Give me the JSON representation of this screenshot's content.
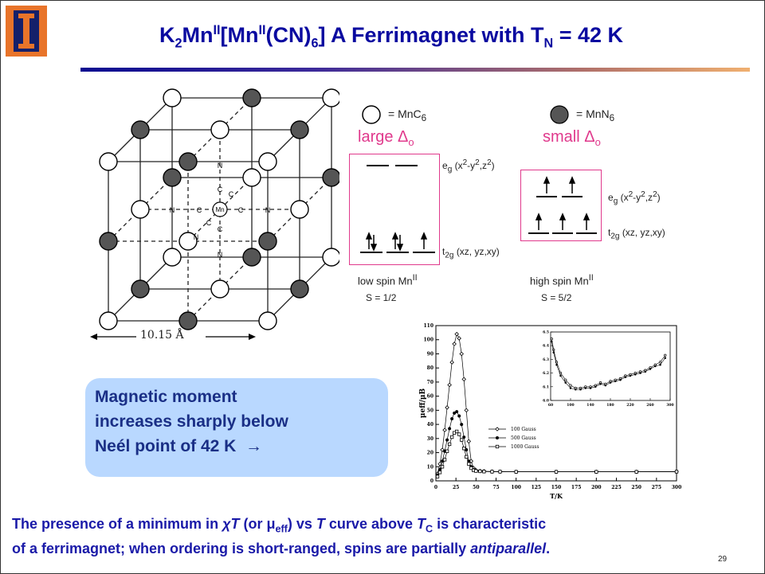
{
  "title": {
    "a": "K",
    "a_sub": "2",
    "b": "Mn",
    "b_sup": "II",
    "c": "[Mn",
    "c_sup": "II",
    "d": "(CN)",
    "d_sub": "6",
    "e": "]  A Ferrimagnet with T",
    "e_sub": "N",
    "f": " = 42 K"
  },
  "lattice": {
    "atom_labels": {
      "center": "Mn",
      "c": "C",
      "n": "N"
    },
    "scale_label": "10.15 Å"
  },
  "legend": {
    "open_eq": "= MnC",
    "open_sub": "6",
    "filled_eq": "= MnN",
    "filled_sub": "6"
  },
  "low_spin": {
    "field_label": "large Δ",
    "field_sub": "o",
    "eg_label": "e",
    "eg_sub": "g",
    "eg_orbitals": "(x",
    "eg_orbitals_sup": "2",
    "eg_orbitals_b": "-y",
    "eg_orbitals_sup2": "2",
    "eg_orbitals_c": ",z",
    "eg_orbitals_sup3": "2",
    "eg_orbitals_d": ")",
    "t2g_label": "t",
    "t2g_sub": "2g",
    "t2g_orbitals": "(xz, yz,xy)",
    "name": "low spin Mn",
    "name_sup": "II",
    "spin": "S = 1/2"
  },
  "high_spin": {
    "field_label": "small Δ",
    "field_sub": "o",
    "eg_label": "e",
    "eg_sub": "g",
    "eg_orbitals": "(x",
    "eg_orbitals_sup": "2",
    "eg_orbitals_b": "-y",
    "eg_orbitals_sup2": "2",
    "eg_orbitals_c": ",z",
    "eg_orbitals_sup3": "2",
    "eg_orbitals_d": ")",
    "t2g_label": "t",
    "t2g_sub": "2g",
    "t2g_orbitals": "(xz, yz,xy)",
    "name": "high spin Mn",
    "name_sup": "II",
    "spin": "S = 5/2"
  },
  "callout": {
    "line1": "Magnetic moment",
    "line2": "increases sharply below",
    "line3": "Neél point of 42 K",
    "arrow": "→"
  },
  "chart_data": {
    "type": "line",
    "xlabel": "T/K",
    "ylabel": "μeff/μB",
    "xlim": [
      0,
      300
    ],
    "ylim": [
      0,
      110
    ],
    "x_ticks": [
      0,
      25,
      50,
      75,
      100,
      125,
      150,
      175,
      200,
      225,
      250,
      275,
      300
    ],
    "y_ticks": [
      0,
      10,
      20,
      30,
      40,
      50,
      60,
      70,
      80,
      90,
      100,
      110
    ],
    "legend_position": "center-right",
    "series": [
      {
        "name": "100 Gauss",
        "marker": "diamond",
        "x": [
          2,
          5,
          8,
          11,
          14,
          17,
          20,
          23,
          26,
          29,
          32,
          35,
          38,
          41,
          44,
          47,
          50,
          55,
          60,
          70,
          80,
          100,
          150,
          200,
          250,
          300
        ],
        "y": [
          5,
          12,
          22,
          36,
          52,
          68,
          84,
          97,
          104,
          101,
          90,
          72,
          50,
          28,
          14,
          9,
          7.5,
          7,
          6.8,
          6.6,
          6.5,
          6.4,
          6.4,
          6.4,
          6.4,
          6.5
        ]
      },
      {
        "name": "500 Gauss",
        "marker": "filled-circle",
        "x": [
          2,
          5,
          8,
          11,
          14,
          17,
          20,
          23,
          26,
          29,
          32,
          35,
          38,
          41,
          44,
          47,
          50,
          55,
          60,
          70,
          80,
          100,
          150,
          200,
          250,
          300
        ],
        "y": [
          4,
          8,
          14,
          21,
          29,
          37,
          44,
          48,
          49,
          46,
          40,
          31,
          22,
          14,
          10,
          8,
          7.2,
          6.9,
          6.7,
          6.6,
          6.5,
          6.4,
          6.4,
          6.4,
          6.4,
          6.5
        ]
      },
      {
        "name": "1000 Gauss",
        "marker": "open-square",
        "x": [
          2,
          5,
          8,
          11,
          14,
          17,
          20,
          23,
          26,
          29,
          32,
          35,
          38,
          41,
          44,
          47,
          50,
          55,
          60,
          70,
          80,
          100,
          150,
          200,
          250,
          300
        ],
        "y": [
          3,
          6,
          10,
          15,
          21,
          26,
          31,
          34,
          35,
          33,
          29,
          23,
          17,
          12,
          9,
          7.5,
          7,
          6.8,
          6.6,
          6.5,
          6.5,
          6.4,
          6.4,
          6.4,
          6.4,
          6.5
        ]
      }
    ],
    "inset": {
      "xlim": [
        60,
        300
      ],
      "ylim": [
        6.0,
        6.5
      ],
      "x_ticks": [
        60,
        100,
        140,
        180,
        220,
        260,
        300
      ],
      "y_ticks": [
        "6.0",
        "6.1",
        "6.2",
        "6.3",
        "6.4",
        "6.5"
      ],
      "series": [
        {
          "marker": "open-circle",
          "x": [
            62,
            66,
            72,
            80,
            90,
            100,
            110,
            120,
            130,
            140,
            150,
            160,
            170,
            180,
            190,
            200,
            210,
            220,
            230,
            240,
            250,
            260,
            270,
            280,
            290
          ],
          "y": [
            6.45,
            6.37,
            6.28,
            6.2,
            6.15,
            6.11,
            6.09,
            6.09,
            6.1,
            6.1,
            6.11,
            6.13,
            6.12,
            6.14,
            6.15,
            6.16,
            6.18,
            6.19,
            6.2,
            6.21,
            6.22,
            6.24,
            6.26,
            6.28,
            6.33
          ]
        },
        {
          "marker": "filled-circle",
          "x": [
            62,
            66,
            72,
            80,
            90,
            100,
            110,
            120,
            130,
            140,
            150,
            160,
            170,
            180,
            190,
            200,
            210,
            220,
            230,
            240,
            250,
            260,
            270,
            280,
            290
          ],
          "y": [
            6.43,
            6.35,
            6.26,
            6.18,
            6.13,
            6.09,
            6.08,
            6.08,
            6.09,
            6.09,
            6.1,
            6.12,
            6.11,
            6.13,
            6.14,
            6.15,
            6.17,
            6.18,
            6.19,
            6.2,
            6.21,
            6.23,
            6.25,
            6.26,
            6.31
          ]
        }
      ]
    }
  },
  "footer": {
    "l1_a": "The presence of a minimum in ",
    "l1_chi": "χT",
    "l1_b": " (or μ",
    "l1_sub": "eff",
    "l1_c": ") vs ",
    "l1_t": "T",
    "l1_d": " curve above ",
    "l1_tc": "T",
    "l1_tc_sub": "C",
    "l1_e": " is characteristic",
    "l2_a": "of a ferrimagnet;  when ordering is short-ranged, spins are partially ",
    "l2_anti": "antiparallel",
    "l2_b": "."
  },
  "page_number": "29",
  "colors": {
    "title": "#0a0aa0",
    "pink": "#e0398c",
    "callout_bg": "#b9d8ff",
    "footer": "#1a1aa8"
  }
}
